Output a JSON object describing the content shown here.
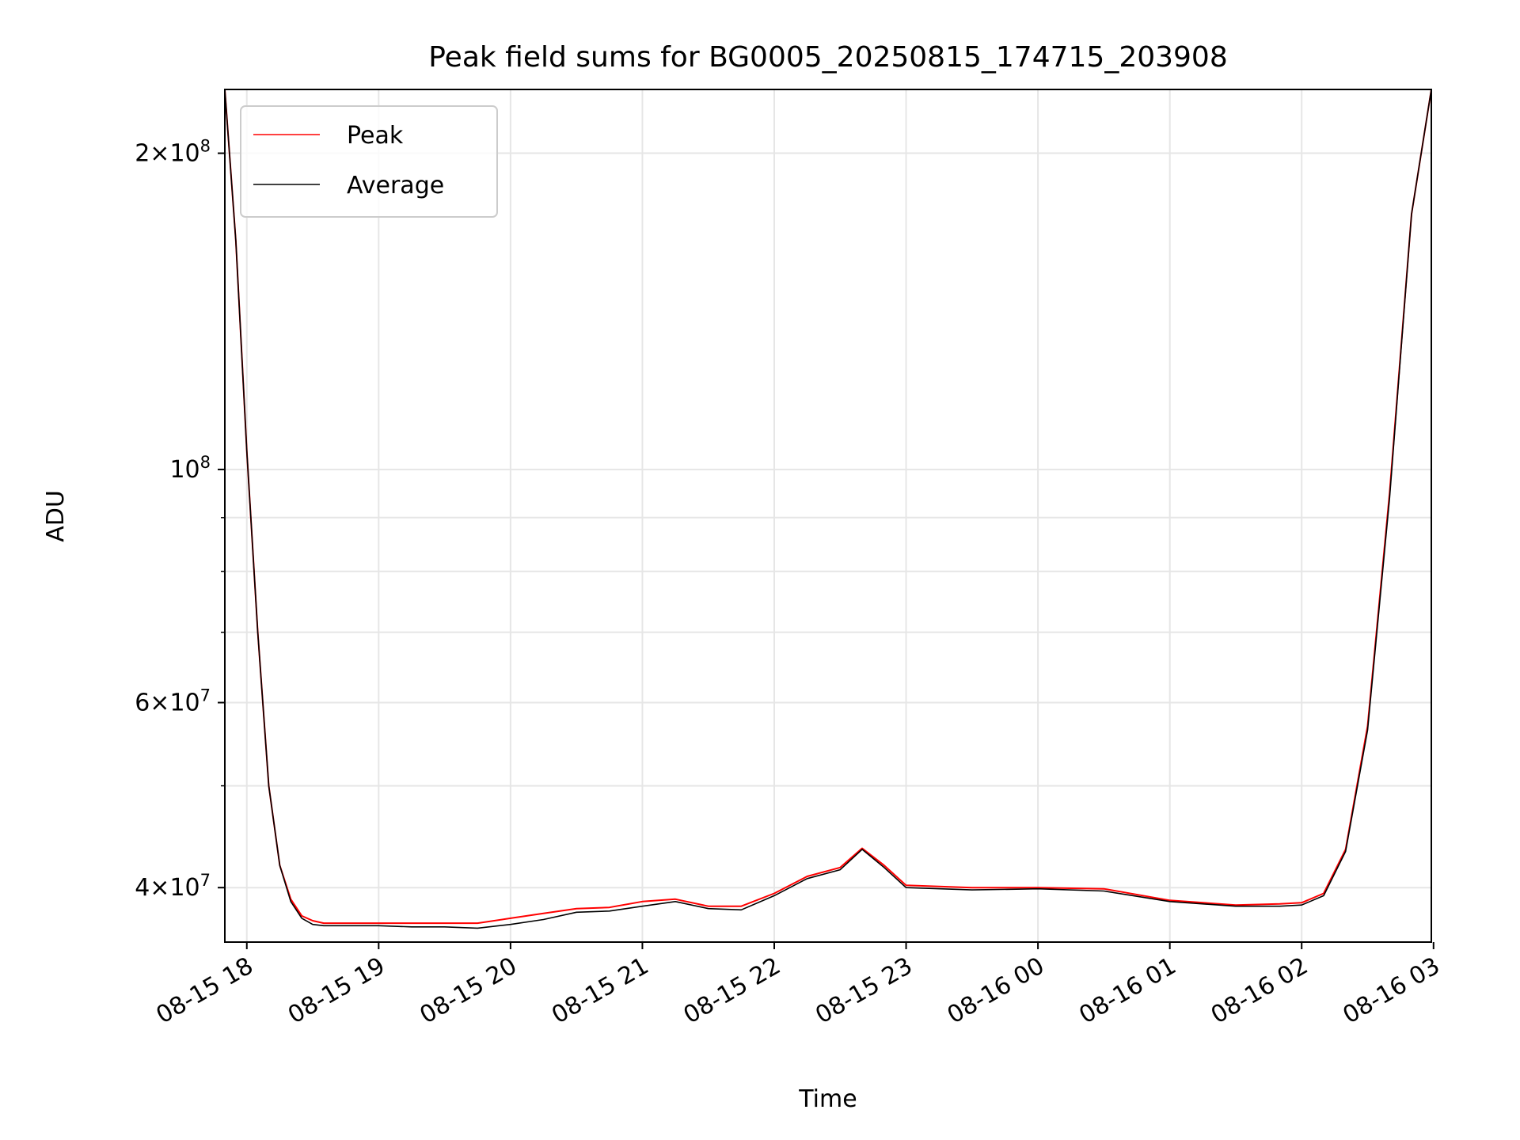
{
  "chart_data": {
    "type": "line",
    "title": "Peak field sums for BG0005_20250815_174715_203908",
    "xlabel": "Time",
    "ylabel": "ADU",
    "yscale": "log",
    "grid": true,
    "legend_position": "upper left",
    "xlim": [
      "2025-08-15 17:50",
      "2025-08-16 02:59"
    ],
    "ylim": [
      35500000,
      230000000
    ],
    "x_ticks": [
      {
        "value": "2025-08-15 18:00",
        "label": "08-15 18"
      },
      {
        "value": "2025-08-15 19:00",
        "label": "08-15 19"
      },
      {
        "value": "2025-08-15 20:00",
        "label": "08-15 20"
      },
      {
        "value": "2025-08-15 21:00",
        "label": "08-15 21"
      },
      {
        "value": "2025-08-15 22:00",
        "label": "08-15 22"
      },
      {
        "value": "2025-08-15 23:00",
        "label": "08-15 23"
      },
      {
        "value": "2025-08-16 00:00",
        "label": "08-16 00"
      },
      {
        "value": "2025-08-16 01:00",
        "label": "08-16 01"
      },
      {
        "value": "2025-08-16 02:00",
        "label": "08-16 02"
      },
      {
        "value": "2025-08-16 03:00",
        "label": "08-16 03"
      }
    ],
    "y_major_ticks": [
      {
        "value": 40000000,
        "mantissa": "4",
        "exponent": "7"
      },
      {
        "value": 60000000,
        "mantissa": "6",
        "exponent": "7"
      },
      {
        "value": 100000000,
        "mantissa": "",
        "exponent": "8"
      },
      {
        "value": 200000000,
        "mantissa": "2",
        "exponent": "8"
      }
    ],
    "y_minor_ticks": [
      50000000,
      70000000,
      80000000,
      90000000
    ],
    "series": [
      {
        "name": "Peak",
        "color": "#ff0000",
        "x": [
          "2025-08-15 17:50",
          "2025-08-15 17:55",
          "2025-08-15 18:00",
          "2025-08-15 18:05",
          "2025-08-15 18:10",
          "2025-08-15 18:15",
          "2025-08-15 18:20",
          "2025-08-15 18:25",
          "2025-08-15 18:30",
          "2025-08-15 18:35",
          "2025-08-15 18:40",
          "2025-08-15 18:50",
          "2025-08-15 19:00",
          "2025-08-15 19:15",
          "2025-08-15 19:30",
          "2025-08-15 19:45",
          "2025-08-15 20:00",
          "2025-08-15 20:15",
          "2025-08-15 20:30",
          "2025-08-15 20:45",
          "2025-08-15 21:00",
          "2025-08-15 21:15",
          "2025-08-15 21:30",
          "2025-08-15 21:45",
          "2025-08-15 22:00",
          "2025-08-15 22:15",
          "2025-08-15 22:30",
          "2025-08-15 22:40",
          "2025-08-15 22:50",
          "2025-08-15 23:00",
          "2025-08-15 23:30",
          "2025-08-16 00:00",
          "2025-08-16 00:30",
          "2025-08-16 01:00",
          "2025-08-16 01:30",
          "2025-08-16 01:50",
          "2025-08-16 02:00",
          "2025-08-16 02:10",
          "2025-08-16 02:20",
          "2025-08-16 02:30",
          "2025-08-16 02:40",
          "2025-08-16 02:50",
          "2025-08-16 02:59"
        ],
        "y": [
          230000000,
          165000000,
          104000000,
          70000000,
          50000000,
          42000000,
          39000000,
          37600000,
          37200000,
          37000000,
          37000000,
          37000000,
          37000000,
          37000000,
          37000000,
          37000000,
          37400000,
          37800000,
          38200000,
          38300000,
          38800000,
          39000000,
          38400000,
          38400000,
          39500000,
          41000000,
          41800000,
          43600000,
          42000000,
          40200000,
          40000000,
          40000000,
          39900000,
          38900000,
          38500000,
          38600000,
          38700000,
          39500000,
          43500000,
          57000000,
          95000000,
          175000000,
          230000000
        ]
      },
      {
        "name": "Average",
        "color": "#000000",
        "x": [
          "2025-08-15 17:50",
          "2025-08-15 17:55",
          "2025-08-15 18:00",
          "2025-08-15 18:05",
          "2025-08-15 18:10",
          "2025-08-15 18:15",
          "2025-08-15 18:20",
          "2025-08-15 18:25",
          "2025-08-15 18:30",
          "2025-08-15 18:35",
          "2025-08-15 18:40",
          "2025-08-15 18:50",
          "2025-08-15 19:00",
          "2025-08-15 19:15",
          "2025-08-15 19:30",
          "2025-08-15 19:45",
          "2025-08-15 20:00",
          "2025-08-15 20:15",
          "2025-08-15 20:30",
          "2025-08-15 20:45",
          "2025-08-15 21:00",
          "2025-08-15 21:15",
          "2025-08-15 21:30",
          "2025-08-15 21:45",
          "2025-08-15 22:00",
          "2025-08-15 22:15",
          "2025-08-15 22:30",
          "2025-08-15 22:40",
          "2025-08-15 22:50",
          "2025-08-15 23:00",
          "2025-08-15 23:30",
          "2025-08-16 00:00",
          "2025-08-16 00:30",
          "2025-08-16 01:00",
          "2025-08-16 01:30",
          "2025-08-16 01:50",
          "2025-08-16 02:00",
          "2025-08-16 02:10",
          "2025-08-16 02:20",
          "2025-08-16 02:30",
          "2025-08-16 02:40",
          "2025-08-16 02:50",
          "2025-08-16 02:59"
        ],
        "y": [
          230000000,
          165000000,
          104000000,
          70000000,
          50000000,
          42000000,
          38800000,
          37400000,
          36900000,
          36800000,
          36800000,
          36800000,
          36800000,
          36700000,
          36700000,
          36600000,
          36900000,
          37300000,
          37900000,
          38000000,
          38400000,
          38800000,
          38200000,
          38100000,
          39300000,
          40800000,
          41600000,
          43500000,
          41800000,
          40000000,
          39800000,
          39900000,
          39700000,
          38800000,
          38400000,
          38400000,
          38500000,
          39300000,
          43300000,
          56500000,
          94000000,
          175000000,
          230000000
        ]
      }
    ]
  }
}
